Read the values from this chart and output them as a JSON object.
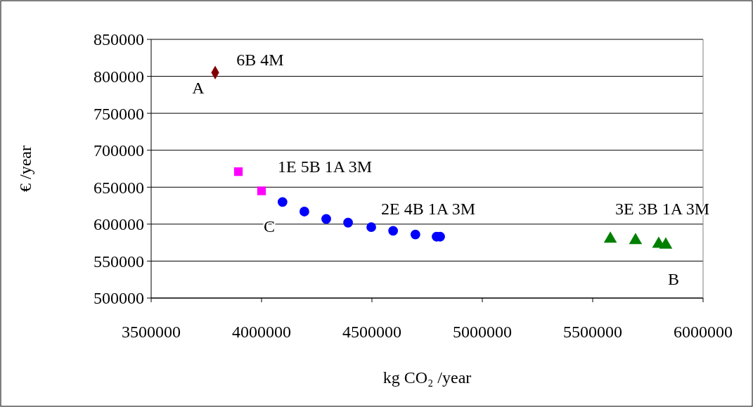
{
  "chart_data": {
    "type": "scatter",
    "xlabel": "kg CO₂ /year",
    "ylabel": "€ /year",
    "xlim": [
      3500000,
      6000000
    ],
    "xticks": [
      3500000,
      4000000,
      4500000,
      5000000,
      5500000,
      6000000
    ],
    "ylim": [
      500000,
      850000
    ],
    "yticks": [
      500000,
      550000,
      600000,
      650000,
      700000,
      750000,
      800000,
      850000
    ],
    "grid": "y",
    "series": [
      {
        "color": "#800000",
        "marker": "diamond",
        "x": [
          3790000
        ],
        "values": [
          805000
        ]
      },
      {
        "color": "#ff00ff",
        "marker": "square",
        "x": [
          3895000,
          4000000
        ],
        "values": [
          671000,
          645000
        ]
      },
      {
        "color": "#0000ff",
        "marker": "circle",
        "x": [
          4095000,
          4194000,
          4293000,
          4392000,
          4497000,
          4596000,
          4697000,
          4793000,
          4809000
        ],
        "values": [
          630000,
          617000,
          607000,
          602000,
          596000,
          591000,
          586000,
          583000,
          583000
        ]
      },
      {
        "color": "#008000",
        "marker": "triangle",
        "x": [
          5580000,
          5694000,
          5799000,
          5831000
        ],
        "values": [
          580000,
          578000,
          573000,
          572000
        ]
      }
    ],
    "annotations": [
      "6B 4M",
      "A",
      "1E 5B 1A 3M",
      "2E 4B 1A 3M",
      "C",
      "3E 3B 1A 3M",
      "B"
    ]
  }
}
